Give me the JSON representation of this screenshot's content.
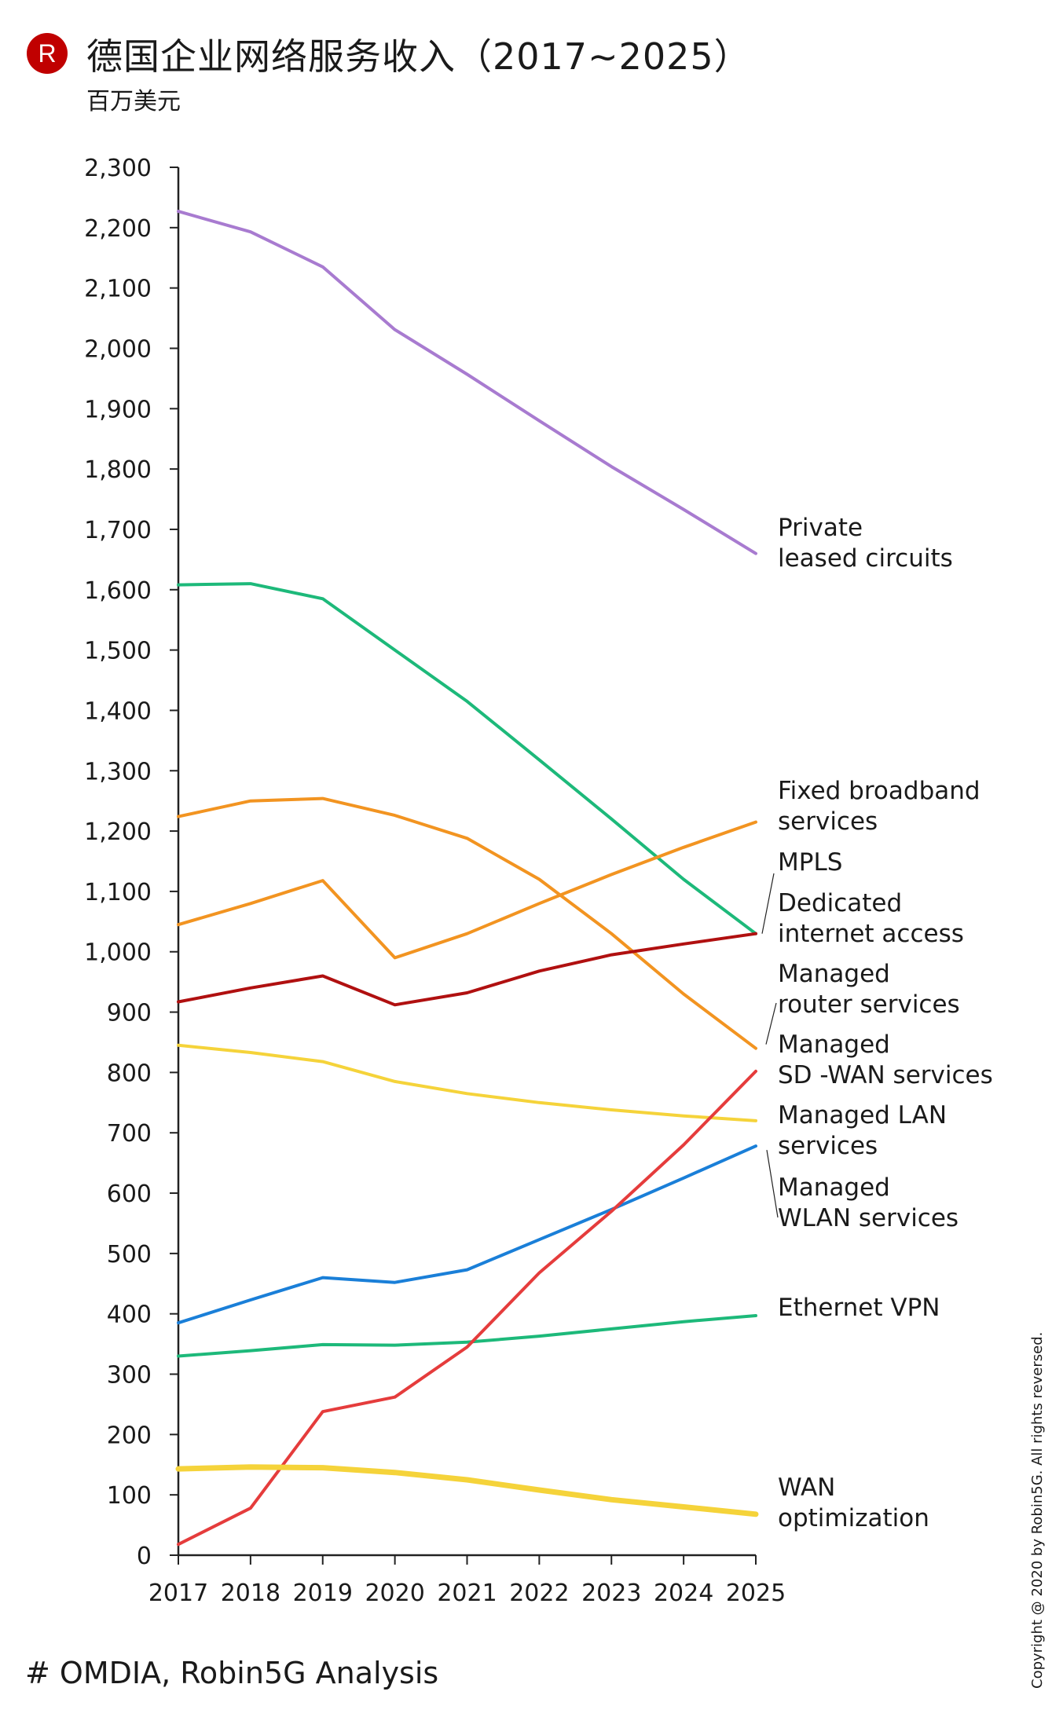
{
  "header": {
    "logo_letter": "R",
    "title": "德国企业网络服务收入（2017~2025）",
    "subtitle": "百万美元"
  },
  "footer": {
    "source": "# OMDIA, Robin5G Analysis",
    "copyright": "Copyright @ 2020 by Robin5G. All rights reversed."
  },
  "chart_data": {
    "type": "line",
    "title": "德国企业网络服务收入（2017~2025）",
    "subtitle": "百万美元",
    "xlabel": "",
    "ylabel": "百万美元",
    "x": [
      "2017",
      "2018",
      "2019",
      "2020",
      "2021",
      "2022",
      "2023",
      "2024",
      "2025"
    ],
    "ylim": [
      0,
      2300
    ],
    "yticks": [
      0,
      100,
      200,
      300,
      400,
      500,
      600,
      700,
      800,
      900,
      1000,
      1100,
      1200,
      1300,
      1400,
      1500,
      1600,
      1700,
      1800,
      1900,
      2000,
      2100,
      2200,
      2300
    ],
    "ytick_labels": [
      "0",
      "100",
      "200",
      "300",
      "400",
      "500",
      "600",
      "700",
      "800",
      "900",
      "1,000",
      "1,100",
      "1,200",
      "1,300",
      "1,400",
      "1,500",
      "1,600",
      "1,700",
      "1,800",
      "1,900",
      "2,000",
      "2,100",
      "2,200",
      "2,300"
    ],
    "grid": false,
    "legend": "direct labels right",
    "series": [
      {
        "name": "Private leased circuits",
        "label_lines": [
          "Private",
          "leased circuits"
        ],
        "color": "#a87bd0",
        "values": [
          2227,
          2193,
          2135,
          2031,
          1957,
          1880,
          1804,
          1733,
          1660
        ]
      },
      {
        "name": "MPLS",
        "label_lines": [
          "MPLS"
        ],
        "color": "#1db97a",
        "values": [
          1608,
          1610,
          1585,
          1500,
          1415,
          1318,
          1220,
          1120,
          1030
        ]
      },
      {
        "name": "Fixed broadband services",
        "label_lines": [
          "Fixed broadband",
          "services"
        ],
        "color": "#f29421",
        "values": [
          1045,
          1080,
          1118,
          990,
          1030,
          1080,
          1128,
          1173,
          1215
        ]
      },
      {
        "name": "Managed router services",
        "label_lines": [
          "Managed",
          "router services"
        ],
        "color": "#f29421",
        "values": [
          1224,
          1250,
          1254,
          1226,
          1188,
          1120,
          1030,
          930,
          840
        ]
      },
      {
        "name": "Dedicated internet access",
        "label_lines": [
          "Dedicated",
          "internet access"
        ],
        "color": "#b01010",
        "values": [
          917,
          940,
          960,
          912,
          932,
          968,
          995,
          1013,
          1030
        ]
      },
      {
        "name": "Managed LAN services",
        "label_lines": [
          "Managed LAN",
          "services"
        ],
        "color": "#f5d33a",
        "values": [
          845,
          833,
          818,
          785,
          765,
          750,
          738,
          728,
          720
        ]
      },
      {
        "name": "Managed WLAN services",
        "label_lines": [
          "Managed",
          "WLAN services"
        ],
        "color": "#1a7fd8",
        "values": [
          385,
          423,
          460,
          452,
          473,
          523,
          573,
          625,
          678
        ]
      },
      {
        "name": "Ethernet VPN",
        "label_lines": [
          "Ethernet VPN"
        ],
        "color": "#1db97a",
        "values": [
          330,
          339,
          349,
          348,
          353,
          363,
          375,
          387,
          397
        ]
      },
      {
        "name": "Managed SD -WAN services",
        "label_lines": [
          "Managed",
          "SD -WAN services"
        ],
        "color": "#e53c3c",
        "values": [
          18,
          78,
          238,
          262,
          345,
          468,
          570,
          680,
          802
        ]
      },
      {
        "name": "WAN optimization",
        "label_lines": [
          "WAN",
          "optimization"
        ],
        "color": "#f5d33a",
        "values": [
          143,
          146,
          145,
          137,
          125,
          108,
          92,
          80,
          68
        ]
      }
    ]
  }
}
